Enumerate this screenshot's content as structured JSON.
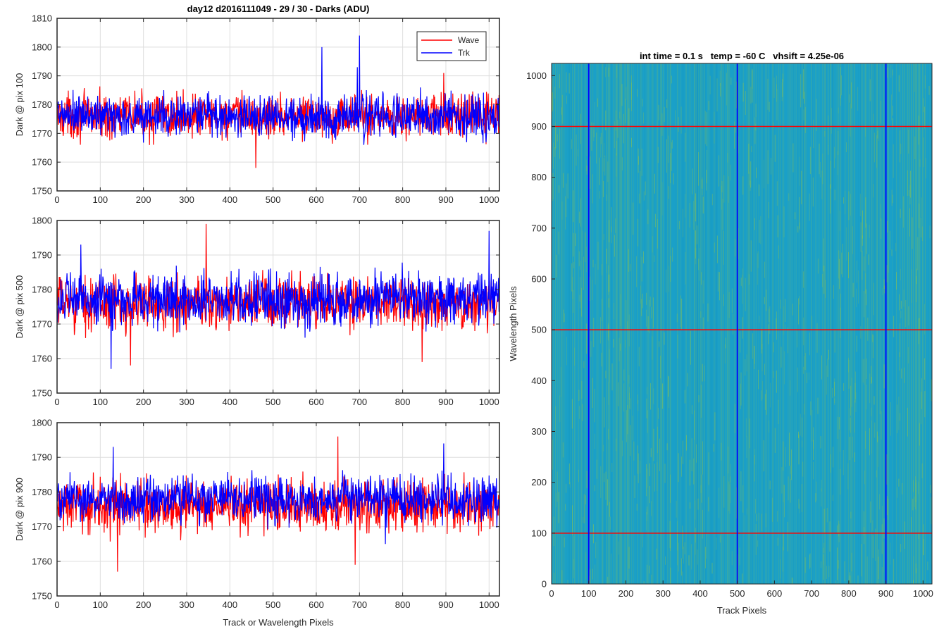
{
  "figure": {
    "title": "day12 d2016111049 - 29 / 30 - Darks (ADU)"
  },
  "chart_data": [
    {
      "type": "line",
      "ylabel": "Dark @ pix 100",
      "xlabel": "",
      "xlim": [
        0,
        1024
      ],
      "ylim": [
        1750,
        1810
      ],
      "xticks": [
        "0",
        "100",
        "200",
        "300",
        "400",
        "500",
        "600",
        "700",
        "800",
        "900",
        "1000"
      ],
      "yticks": [
        "1750",
        "1760",
        "1770",
        "1780",
        "1790",
        "1800",
        "1810"
      ],
      "grid": true,
      "legend": {
        "placement": "top-right",
        "entries": [
          "Wave",
          "Trk"
        ]
      },
      "series": [
        {
          "name": "Wave",
          "color": "#ff0000",
          "mean": 1776,
          "amplitude": 7,
          "features": [
            [
              655,
              1781
            ],
            [
              460,
              1758
            ],
            [
              895,
              1791
            ]
          ]
        },
        {
          "name": "Trk",
          "color": "#0000ff",
          "mean": 1776,
          "amplitude": 7,
          "features": [
            [
              613,
              1800
            ],
            [
              700,
              1804
            ],
            [
              695,
              1793
            ]
          ]
        }
      ]
    },
    {
      "type": "line",
      "ylabel": "Dark @ pix 500",
      "xlabel": "",
      "xlim": [
        0,
        1024
      ],
      "ylim": [
        1750,
        1800
      ],
      "xticks": [
        "0",
        "100",
        "200",
        "300",
        "400",
        "500",
        "600",
        "700",
        "800",
        "900",
        "1000"
      ],
      "yticks": [
        "1750",
        "1760",
        "1770",
        "1780",
        "1790",
        "1800"
      ],
      "grid": true,
      "series": [
        {
          "name": "Wave",
          "color": "#ff0000",
          "mean": 1776,
          "amplitude": 7,
          "features": [
            [
              345,
              1799
            ],
            [
              845,
              1759
            ],
            [
              170,
              1758
            ]
          ]
        },
        {
          "name": "Trk",
          "color": "#0000ff",
          "mean": 1777,
          "amplitude": 7,
          "features": [
            [
              1000,
              1797
            ],
            [
              125,
              1757
            ],
            [
              55,
              1793
            ]
          ]
        }
      ]
    },
    {
      "type": "line",
      "ylabel": "Dark @ pix 900",
      "xlabel": "Track or Wavelength Pixels",
      "xlim": [
        0,
        1024
      ],
      "ylim": [
        1750,
        1800
      ],
      "xticks": [
        "0",
        "100",
        "200",
        "300",
        "400",
        "500",
        "600",
        "700",
        "800",
        "900",
        "1000"
      ],
      "yticks": [
        "1750",
        "1760",
        "1770",
        "1780",
        "1790",
        "1800"
      ],
      "grid": true,
      "series": [
        {
          "name": "Wave",
          "color": "#ff0000",
          "mean": 1776,
          "amplitude": 7,
          "features": [
            [
              650,
              1796
            ],
            [
              140,
              1757
            ],
            [
              690,
              1759
            ]
          ]
        },
        {
          "name": "Trk",
          "color": "#0000ff",
          "mean": 1778,
          "amplitude": 6,
          "features": [
            [
              895,
              1794
            ],
            [
              130,
              1793
            ],
            [
              760,
              1765
            ]
          ]
        }
      ]
    },
    {
      "type": "heatmap",
      "title": "int time = 0.1 s   temp = -60 C   vhsift = 4.25e-06",
      "xlabel": "Track Pixels",
      "ylabel": "Wavelength Pixels",
      "xlim": [
        0,
        1024
      ],
      "ylim": [
        0,
        1024
      ],
      "xticks": [
        "0",
        "100",
        "200",
        "300",
        "400",
        "500",
        "600",
        "700",
        "800",
        "900",
        "1000"
      ],
      "yticks": [
        "0",
        "100",
        "200",
        "300",
        "400",
        "500",
        "600",
        "700",
        "800",
        "900",
        "1000"
      ],
      "grid": false,
      "colors": {
        "base": "#1aa0c8",
        "stripe": "#9ec83c"
      },
      "vertical_markers": {
        "color": "#0000ff",
        "x": [
          100,
          500,
          900
        ]
      },
      "horizontal_markers": {
        "color": "#ff0000",
        "y": [
          100,
          500,
          900
        ]
      }
    }
  ]
}
